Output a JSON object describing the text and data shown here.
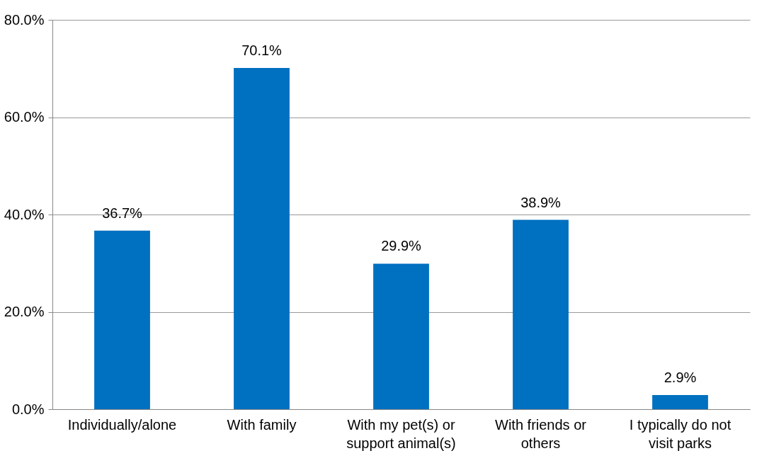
{
  "chart_data": {
    "type": "bar",
    "categories": [
      "Individually/alone",
      "With family",
      "With my pet(s) or support animal(s)",
      "With friends or others",
      "I typically do not visit parks"
    ],
    "values": [
      36.7,
      70.1,
      29.9,
      38.9,
      2.9
    ],
    "value_labels": [
      "36.7%",
      "70.1%",
      "29.9%",
      "38.9%",
      "2.9%"
    ],
    "color": "#0070c0",
    "ylim": [
      0,
      80
    ],
    "yticks": [
      {
        "value": 0,
        "label": "0.0%"
      },
      {
        "value": 20,
        "label": "20.0%"
      },
      {
        "value": 40,
        "label": "40.0%"
      },
      {
        "value": 60,
        "label": "60.0%"
      },
      {
        "value": 80,
        "label": "80.0%"
      }
    ],
    "grid": "y"
  }
}
